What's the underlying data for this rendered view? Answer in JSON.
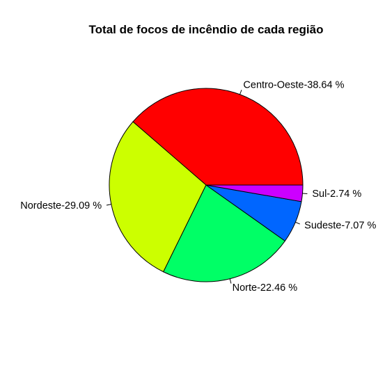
{
  "chart_data": {
    "type": "pie",
    "title": "Total de focos de incêndio de cada região",
    "slices": [
      {
        "category": "Centro-Oeste",
        "value": 38.64,
        "label": "Centro-Oeste-38.64 %",
        "color": "#FF0000"
      },
      {
        "category": "Nordeste",
        "value": 29.09,
        "label": "Nordeste-29.09 %",
        "color": "#CCFF00"
      },
      {
        "category": "Norte",
        "value": 22.46,
        "label": "Norte-22.46 %",
        "color": "#00FF66"
      },
      {
        "category": "Sudeste",
        "value": 7.07,
        "label": "Sudeste-7.07 %",
        "color": "#0066FF"
      },
      {
        "category": "Sul",
        "value": 2.74,
        "label": "Sul-2.74 %",
        "color": "#CC00FF"
      }
    ],
    "direction": "counterclockwise",
    "start": "right"
  }
}
